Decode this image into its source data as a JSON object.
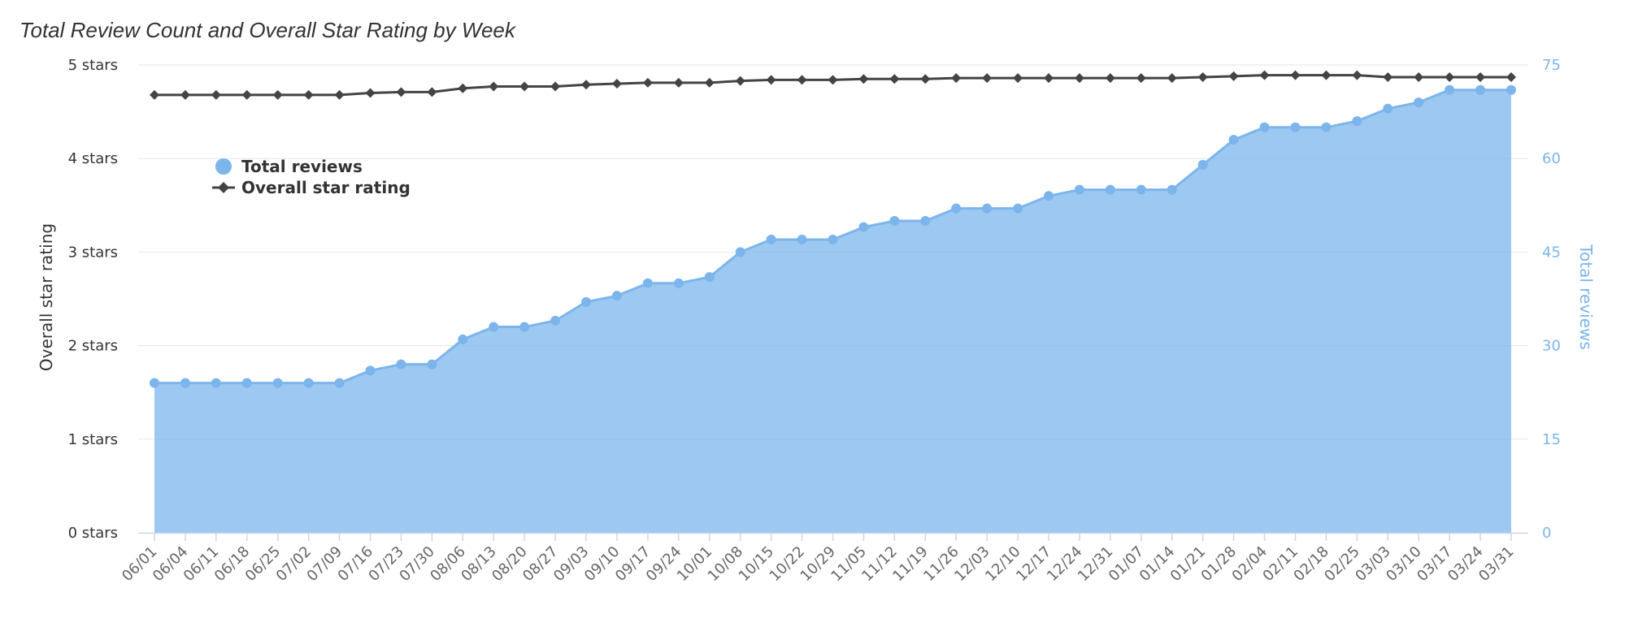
{
  "chart_data": {
    "type": "area",
    "title": "Total Review Count and Overall Star Rating by Week",
    "categories": [
      "06/01",
      "06/04",
      "06/11",
      "06/18",
      "06/25",
      "07/02",
      "07/09",
      "07/16",
      "07/23",
      "07/30",
      "08/06",
      "08/13",
      "08/20",
      "08/27",
      "09/03",
      "09/10",
      "09/17",
      "09/24",
      "10/01",
      "10/08",
      "10/15",
      "10/22",
      "10/29",
      "11/05",
      "11/12",
      "11/19",
      "11/26",
      "12/03",
      "12/10",
      "12/17",
      "12/24",
      "12/31",
      "01/07",
      "01/14",
      "01/21",
      "01/28",
      "02/04",
      "02/11",
      "02/18",
      "02/25",
      "03/03",
      "03/10",
      "03/17",
      "03/24",
      "03/31"
    ],
    "series": [
      {
        "name": "Total reviews",
        "axis": "right",
        "kind": "area",
        "color": "#7cb5ec",
        "values": [
          24,
          24,
          24,
          24,
          24,
          24,
          24,
          26,
          27,
          27,
          31,
          33,
          33,
          34,
          37,
          38,
          40,
          40,
          41,
          45,
          47,
          47,
          47,
          49,
          50,
          50,
          52,
          52,
          52,
          54,
          55,
          55,
          55,
          55,
          59,
          63,
          65,
          65,
          65,
          66,
          68,
          69,
          71,
          71,
          71
        ]
      },
      {
        "name": "Overall star rating",
        "axis": "left",
        "kind": "line",
        "color": "#434348",
        "values": [
          4.68,
          4.68,
          4.68,
          4.68,
          4.68,
          4.68,
          4.68,
          4.7,
          4.71,
          4.71,
          4.75,
          4.77,
          4.77,
          4.77,
          4.79,
          4.8,
          4.81,
          4.81,
          4.81,
          4.83,
          4.84,
          4.84,
          4.84,
          4.85,
          4.85,
          4.85,
          4.86,
          4.86,
          4.86,
          4.86,
          4.86,
          4.86,
          4.86,
          4.86,
          4.87,
          4.88,
          4.89,
          4.89,
          4.89,
          4.89,
          4.87,
          4.87,
          4.87,
          4.87,
          4.87
        ]
      }
    ],
    "yaxis_left": {
      "title": "Overall star rating",
      "range": [
        0,
        5
      ],
      "ticks": [
        "0 stars",
        "1 stars",
        "2 stars",
        "3 stars",
        "4 stars",
        "5 stars"
      ],
      "color": "#333333"
    },
    "yaxis_right": {
      "title": "Total reviews",
      "range": [
        0,
        75
      ],
      "ticks": [
        "0",
        "15",
        "30",
        "45",
        "60",
        "75"
      ],
      "color": "#7cb5ec"
    },
    "grid": true,
    "legend_position": "top-left"
  }
}
